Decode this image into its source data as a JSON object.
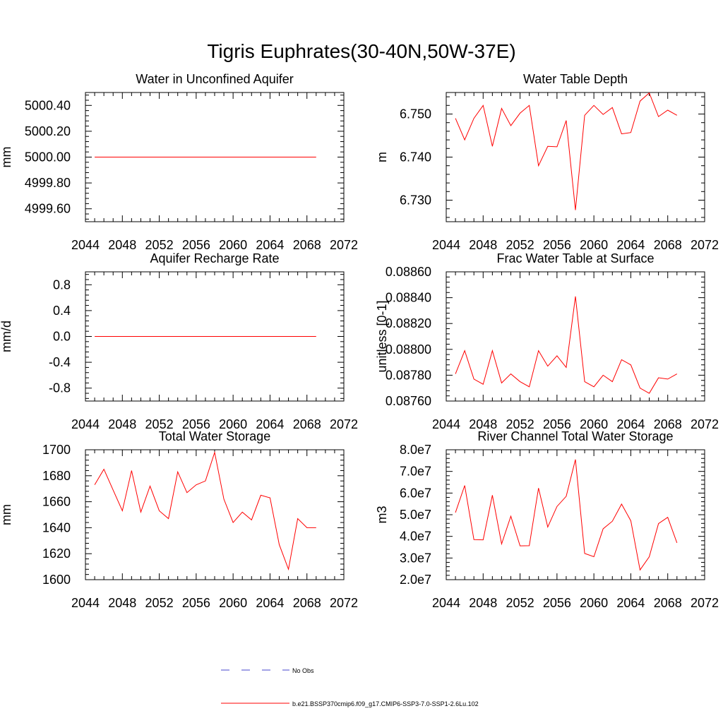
{
  "title": "Tigris Euphrates(30-40N,50W-37E)",
  "colors": {
    "model_line": "#ff0000",
    "obs_line": "#4444cc",
    "axes": "#000000"
  },
  "legend": {
    "placement": "bottom-center",
    "items": [
      {
        "label": "No Obs",
        "style": "dashed",
        "color": "#4444cc"
      },
      {
        "label": "b.e21.BSSP370cmip6.f09_g17.CMIP6-SSP3-7.0-SSP1-2.6Lu.102",
        "style": "solid",
        "color": "#ff0000"
      }
    ]
  },
  "chart_data": [
    {
      "type": "line",
      "title": "Water in Unconfined Aquifer",
      "ylabel": "mm",
      "xlim": [
        2044,
        2072
      ],
      "ylim": [
        4999.5,
        5000.5
      ],
      "xticks": [
        2044,
        2048,
        2052,
        2056,
        2060,
        2064,
        2068,
        2072
      ],
      "yticks": [
        4999.6,
        4999.8,
        5000.0,
        5000.2,
        5000.4
      ],
      "ytick_labels": [
        "4999.60",
        "4999.80",
        "5000.00",
        "5000.20",
        "5000.40"
      ],
      "x": [
        2045,
        2046,
        2047,
        2048,
        2049,
        2050,
        2051,
        2052,
        2053,
        2054,
        2055,
        2056,
        2057,
        2058,
        2059,
        2060,
        2061,
        2062,
        2063,
        2064,
        2065,
        2066,
        2067,
        2068,
        2069
      ],
      "series": [
        {
          "values": [
            5000,
            5000,
            5000,
            5000,
            5000,
            5000,
            5000,
            5000,
            5000,
            5000,
            5000,
            5000,
            5000,
            5000,
            5000,
            5000,
            5000,
            5000,
            5000,
            5000,
            5000,
            5000,
            5000,
            5000,
            5000
          ]
        }
      ]
    },
    {
      "type": "line",
      "title": "Water Table Depth",
      "ylabel": "m",
      "xlim": [
        2044,
        2072
      ],
      "ylim": [
        6.725,
        6.755
      ],
      "xticks": [
        2044,
        2048,
        2052,
        2056,
        2060,
        2064,
        2068,
        2072
      ],
      "yticks": [
        6.73,
        6.74,
        6.75
      ],
      "ytick_labels": [
        "6.730",
        "6.740",
        "6.750"
      ],
      "x": [
        2045,
        2046,
        2047,
        2048,
        2049,
        2050,
        2051,
        2052,
        2053,
        2054,
        2055,
        2056,
        2057,
        2058,
        2059,
        2060,
        2061,
        2062,
        2063,
        2064,
        2065,
        2066,
        2067,
        2068,
        2069
      ],
      "series": [
        {
          "values": [
            6.749,
            6.744,
            6.749,
            6.752,
            6.7425,
            6.7513,
            6.7473,
            6.7502,
            6.752,
            6.738,
            6.7425,
            6.7424,
            6.7485,
            6.7277,
            6.7497,
            6.752,
            6.7499,
            6.7515,
            6.7454,
            6.7457,
            6.753,
            6.7549,
            6.7494,
            6.7509,
            6.7497
          ]
        }
      ]
    },
    {
      "type": "line",
      "title": "Aquifer Recharge Rate",
      "ylabel": "mm/d",
      "xlim": [
        2044,
        2072
      ],
      "ylim": [
        -1.0,
        1.0
      ],
      "xticks": [
        2044,
        2048,
        2052,
        2056,
        2060,
        2064,
        2068,
        2072
      ],
      "yticks": [
        -0.8,
        -0.4,
        0.0,
        0.4,
        0.8
      ],
      "ytick_labels": [
        "-0.8",
        "-0.4",
        "0.0",
        "0.4",
        "0.8"
      ],
      "x": [
        2045,
        2046,
        2047,
        2048,
        2049,
        2050,
        2051,
        2052,
        2053,
        2054,
        2055,
        2056,
        2057,
        2058,
        2059,
        2060,
        2061,
        2062,
        2063,
        2064,
        2065,
        2066,
        2067,
        2068,
        2069
      ],
      "series": [
        {
          "values": [
            0,
            0,
            0,
            0,
            0,
            0,
            0,
            0,
            0,
            0,
            0,
            0,
            0,
            0,
            0,
            0,
            0,
            0,
            0,
            0,
            0,
            0,
            0,
            0,
            0
          ]
        }
      ]
    },
    {
      "type": "line",
      "title": "Frac Water Table at Surface",
      "ylabel": "unitless [0-1]",
      "xlim": [
        2044,
        2072
      ],
      "ylim": [
        0.0876,
        0.0886
      ],
      "xticks": [
        2044,
        2048,
        2052,
        2056,
        2060,
        2064,
        2068,
        2072
      ],
      "yticks": [
        0.0876,
        0.0878,
        0.088,
        0.0882,
        0.0884,
        0.0886
      ],
      "ytick_labels": [
        "0.08760",
        "0.08780",
        "0.08800",
        "0.08820",
        "0.08840",
        "0.08860"
      ],
      "x": [
        2045,
        2046,
        2047,
        2048,
        2049,
        2050,
        2051,
        2052,
        2053,
        2054,
        2055,
        2056,
        2057,
        2058,
        2059,
        2060,
        2061,
        2062,
        2063,
        2064,
        2065,
        2066,
        2067,
        2068,
        2069
      ],
      "series": [
        {
          "values": [
            0.08781,
            0.08799,
            0.08777,
            0.08773,
            0.08799,
            0.08774,
            0.08781,
            0.08775,
            0.08771,
            0.08799,
            0.08787,
            0.08795,
            0.08786,
            0.08841,
            0.08775,
            0.08771,
            0.0878,
            0.08775,
            0.08792,
            0.08788,
            0.0877,
            0.08766,
            0.08778,
            0.08777,
            0.08781
          ]
        }
      ]
    },
    {
      "type": "line",
      "title": "Total Water Storage",
      "ylabel": "mm",
      "xlim": [
        2044,
        2072
      ],
      "ylim": [
        1600,
        1700
      ],
      "xticks": [
        2044,
        2048,
        2052,
        2056,
        2060,
        2064,
        2068,
        2072
      ],
      "yticks": [
        1600,
        1620,
        1640,
        1660,
        1680,
        1700
      ],
      "ytick_labels": [
        "1600",
        "1620",
        "1640",
        "1660",
        "1680",
        "1700"
      ],
      "x": [
        2045,
        2046,
        2047,
        2048,
        2049,
        2050,
        2051,
        2052,
        2053,
        2054,
        2055,
        2056,
        2057,
        2058,
        2059,
        2060,
        2061,
        2062,
        2063,
        2064,
        2065,
        2066,
        2067,
        2068,
        2069
      ],
      "series": [
        {
          "values": [
            1673,
            1685,
            1669,
            1653,
            1684,
            1652,
            1672,
            1653,
            1647,
            1683,
            1667,
            1673,
            1676,
            1698,
            1662,
            1644,
            1652,
            1646,
            1665,
            1663,
            1627,
            1608,
            1647,
            1640,
            1640
          ]
        }
      ]
    },
    {
      "type": "line",
      "title": "River Channel Total Water Storage",
      "ylabel": "m3",
      "xlim": [
        2044,
        2072
      ],
      "ylim": [
        20000000,
        80000000
      ],
      "xticks": [
        2044,
        2048,
        2052,
        2056,
        2060,
        2064,
        2068,
        2072
      ],
      "yticks": [
        20000000,
        30000000,
        40000000,
        50000000,
        60000000,
        70000000,
        80000000
      ],
      "ytick_labels": [
        "2.0e7",
        "3.0e7",
        "4.0e7",
        "5.0e7",
        "6.0e7",
        "7.0e7",
        "8.0e7"
      ],
      "x": [
        2045,
        2046,
        2047,
        2048,
        2049,
        2050,
        2051,
        2052,
        2053,
        2054,
        2055,
        2056,
        2057,
        2058,
        2059,
        2060,
        2061,
        2062,
        2063,
        2064,
        2065,
        2066,
        2067,
        2068,
        2069
      ],
      "series": [
        {
          "values": [
            51000000,
            63500000,
            38500000,
            38400000,
            59000000,
            36500000,
            49300000,
            35600000,
            35700000,
            62300000,
            44300000,
            53800000,
            58500000,
            75500000,
            32100000,
            30600000,
            43500000,
            47000000,
            54900000,
            47200000,
            24500000,
            30600000,
            45900000,
            48800000,
            37000000
          ]
        }
      ]
    }
  ]
}
